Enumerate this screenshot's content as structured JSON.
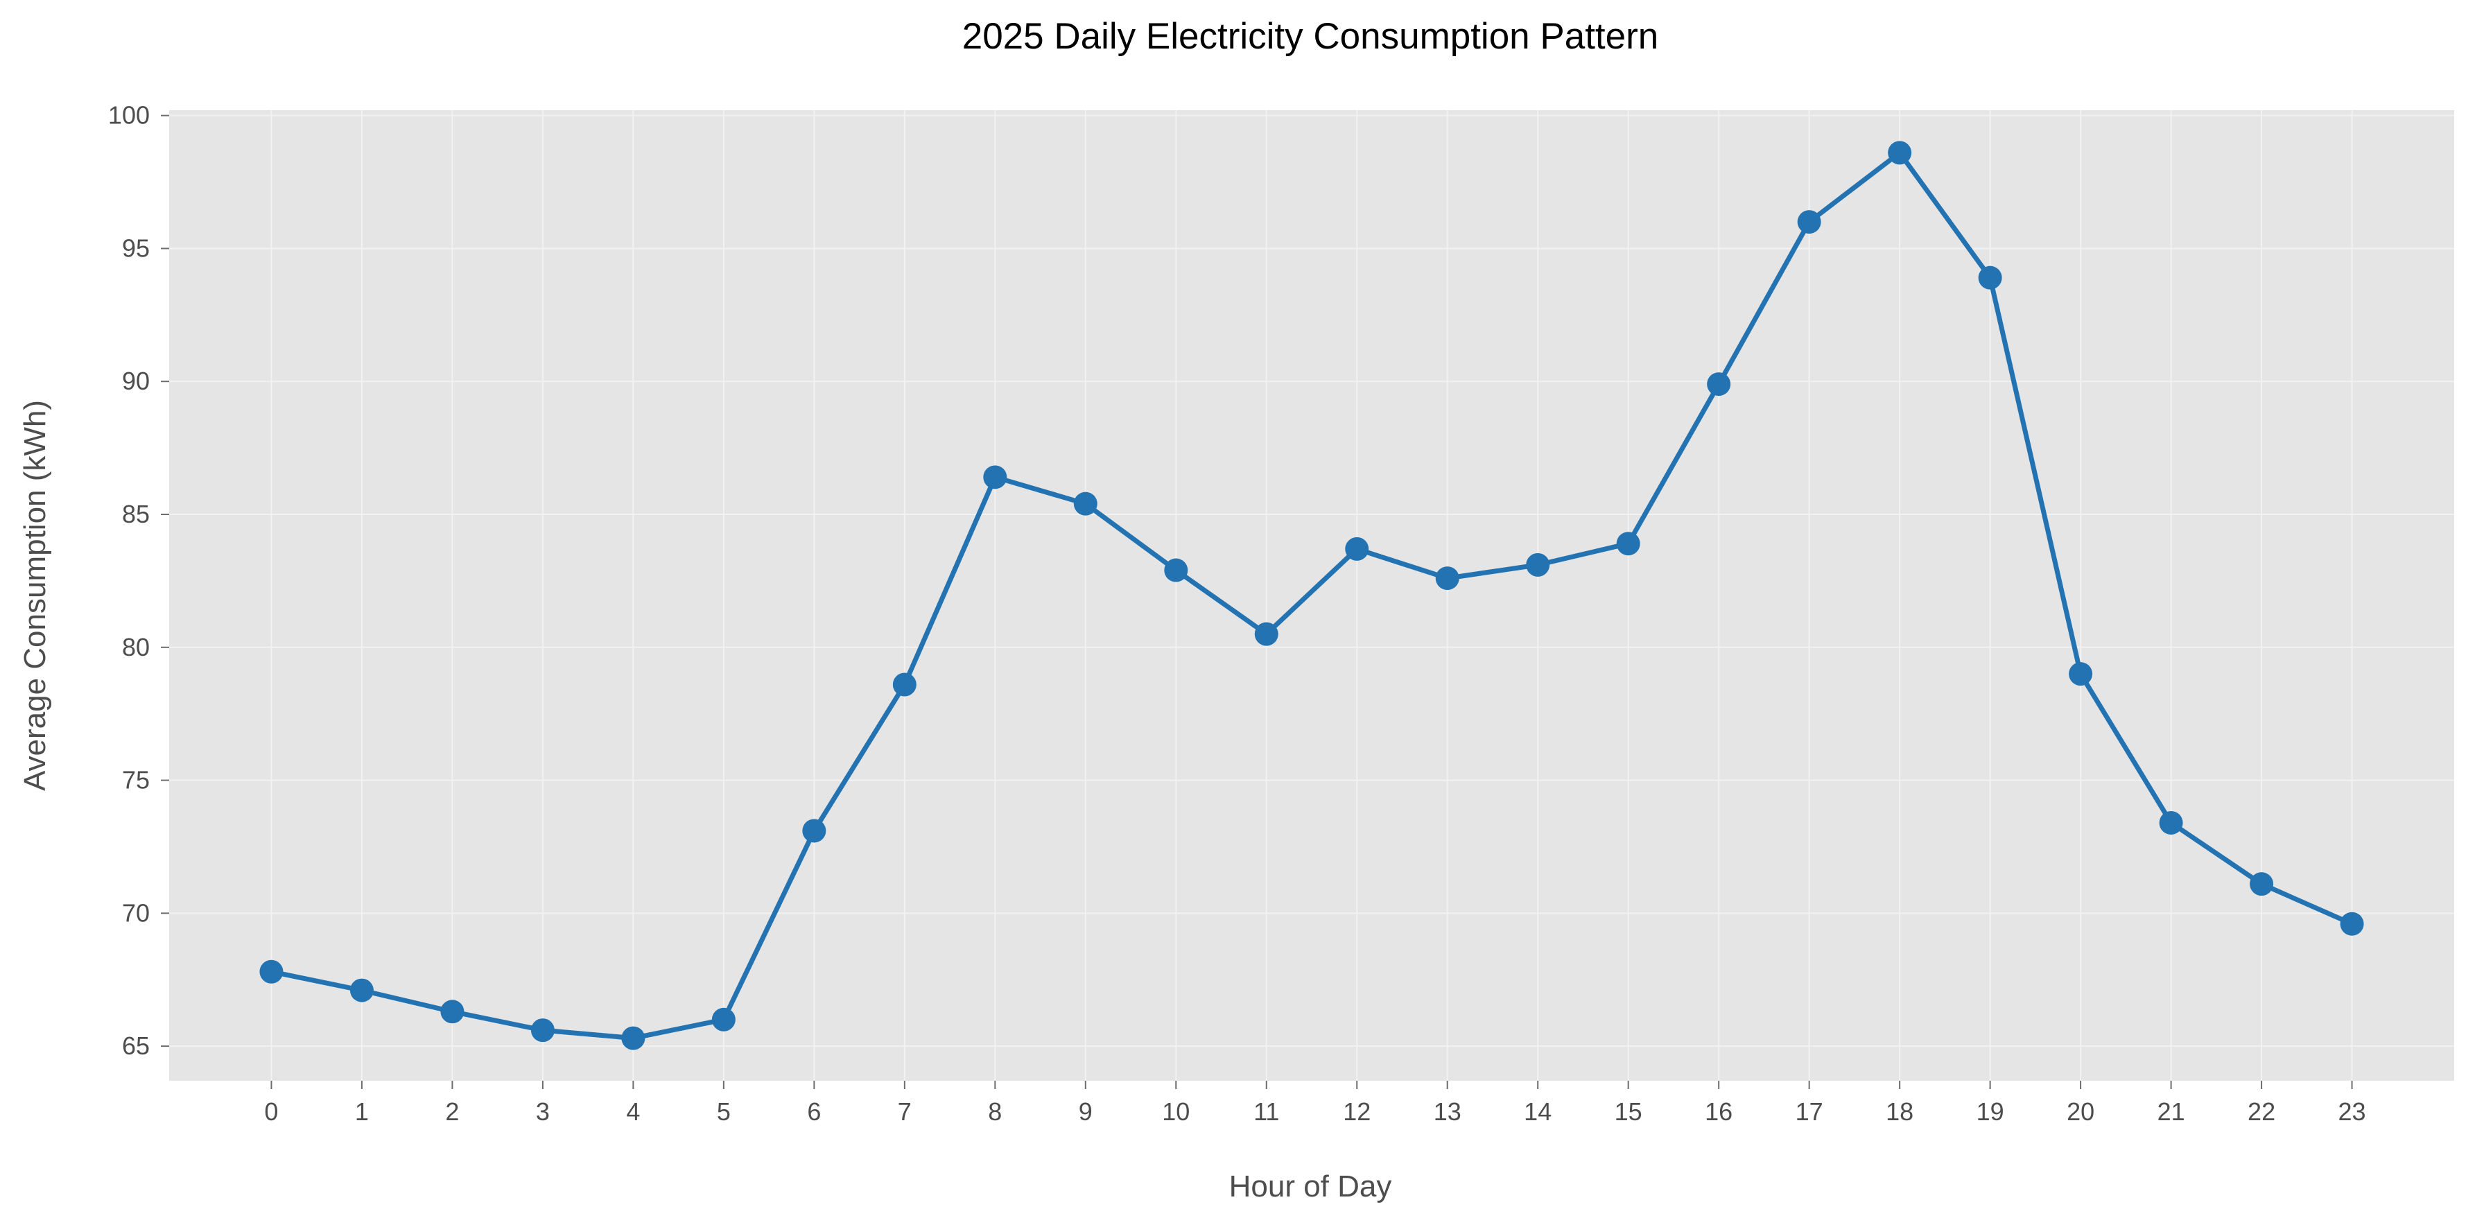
{
  "chart_data": {
    "type": "line",
    "title": "2025 Daily Electricity Consumption Pattern",
    "xlabel": "Hour of Day",
    "ylabel": "Average Consumption (kWh)",
    "x": [
      0,
      1,
      2,
      3,
      4,
      5,
      6,
      7,
      8,
      9,
      10,
      11,
      12,
      13,
      14,
      15,
      16,
      17,
      18,
      19,
      20,
      21,
      22,
      23
    ],
    "xticks": [
      "0",
      "1",
      "2",
      "3",
      "4",
      "5",
      "6",
      "7",
      "8",
      "9",
      "10",
      "11",
      "12",
      "13",
      "14",
      "15",
      "16",
      "17",
      "18",
      "19",
      "20",
      "21",
      "22",
      "23"
    ],
    "yticks": [
      65,
      70,
      75,
      80,
      85,
      90,
      95,
      100
    ],
    "xlim": [
      -1.13,
      24.13
    ],
    "ylim": [
      63.7,
      100.2
    ],
    "grid": true,
    "series": [
      {
        "values": [
          67.8,
          67.1,
          66.3,
          65.6,
          65.3,
          66.0,
          73.1,
          78.6,
          86.4,
          85.4,
          82.9,
          80.5,
          83.7,
          82.6,
          83.1,
          83.9,
          89.9,
          96.0,
          98.6,
          93.9,
          79.0,
          73.4,
          71.1,
          69.6
        ],
        "color": "#2373b2"
      }
    ],
    "colors": {
      "plot_background": "#e5e5e5",
      "grid": "#f2f2f2",
      "tick_text": "#4d4d4d",
      "title_text": "#000000"
    }
  }
}
